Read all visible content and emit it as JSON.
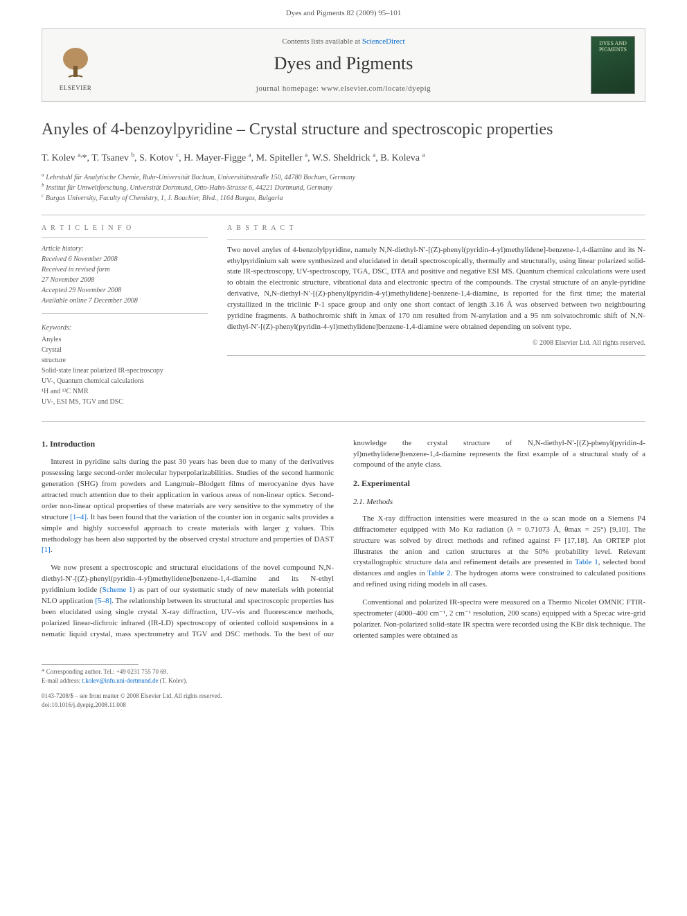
{
  "running_head": "Dyes and Pigments 82 (2009) 95–101",
  "banner": {
    "contents_prefix": "Contents lists available at ",
    "contents_link": "ScienceDirect",
    "journal_name": "Dyes and Pigments",
    "homepage_prefix": "journal homepage: ",
    "homepage_url": "www.elsevier.com/locate/dyepig",
    "publisher_logo_text": "ELSEVIER",
    "cover_text": "DYES AND PIGMENTS"
  },
  "title": "Anyles of 4-benzoylpyridine – Crystal structure and spectroscopic properties",
  "authors_html": "T. Kolev <sup>a,</sup>*, T. Tsanev <sup>b</sup>, S. Kotov <sup>c</sup>, H. Mayer-Figge <sup>a</sup>, M. Spiteller <sup>a</sup>, W.S. Sheldrick <sup>a</sup>, B. Koleva <sup>a</sup>",
  "affiliations": [
    "a Lehrstuhl für Analytische Chemie, Ruhr-Universität Bochum, Universitätsstraße 150, 44780 Bochum, Germany",
    "b Institut für Umweltforschung, Universität Dortmund, Otto-Hahn-Strasse 6, 44221 Dortmund, Germany",
    "c Burgas University, Faculty of Chemistry, 1, J. Bouchier, Blvd., 1164 Burgas, Bulgaria"
  ],
  "article_info_label": "A R T I C L E   I N F O",
  "abstract_label": "A B S T R A C T",
  "history": {
    "head": "Article history:",
    "received": "Received 6 November 2008",
    "revised": "Received in revised form",
    "revised_date": "27 November 2008",
    "accepted": "Accepted 29 November 2008",
    "online": "Available online 7 December 2008"
  },
  "keywords_head": "Keywords:",
  "keywords": [
    "Anyles",
    "Crystal",
    "structure",
    "Solid-state linear polarized IR-spectroscopy",
    "UV-, Quantum chemical calculations",
    "¹H and ¹³C NMR",
    "UV-, ESI MS, TGV and DSC"
  ],
  "abstract": "Two novel anyles of 4-benzolylpyridine, namely N,N-diethyl-N′-[(Z)-phenyl(pyridin-4-yl)methylidene]-benzene-1,4-diamine and its N-ethylpyridinium salt were synthesized and elucidated in detail spectroscopically, thermally and structurally, using linear polarized solid-state IR-spectroscopy, UV-spectroscopy, TGA, DSC, DTA and positive and negative ESI MS. Quantum chemical calculations were used to obtain the electronic structure, vibrational data and electronic spectra of the compounds. The crystal structure of an anyle-pyridine derivative, N,N-diethyl-N′-[(Z)-phenyl(pyridin-4-yl)methylidene]-benzene-1,4-diamine, is reported for the first time; the material crystallized in the triclinic P-1 space group and only one short contact of length 3.16 Å was observed between two neighbouring pyridine fragments. A bathochromic shift in λmax of 170 nm resulted from N-anylation and a 95 nm solvatochromic shift of N,N-diethyl-N′-[(Z)-phenyl(pyridin-4-yl)methylidene]benzene-1,4-diamine were obtained depending on solvent type.",
  "copyright": "© 2008 Elsevier Ltd. All rights reserved.",
  "sections": {
    "intro_head": "1. Introduction",
    "intro_p1": "Interest in pyridine salts during the past 30 years has been due to many of the derivatives possessing large second-order molecular hyperpolarizabilities. Studies of the second harmonic generation (SHG) from powders and Langmuir–Blodgett films of merocyanine dyes have attracted much attention due to their application in various areas of non-linear optics. Second-order non-linear optical properties of these materials are very sensitive to the symmetry of the structure [1–4]. It has been found that the variation of the counter ion in organic salts provides a simple and highly successful approach to create materials with larger χ values. This methodology has been also supported by the observed crystal structure and properties of DAST [1].",
    "intro_p2": "We now present a spectroscopic and structural elucidations of the novel compound N,N-diethyl-N′-[(Z)-phenyl(pyridin-4-yl)methylidene]benzene-1,4-diamine and its N-ethyl pyridinium iodide (Scheme 1) as part of our systematic study of new materials with potential NLO application [5–8]. The relationship between its structural and spectroscopic properties has been elucidated using single crystal X-ray diffraction, UV–vis and fluorescence methods, polarized linear-dichroic infrared (IR-LD) spectroscopy of oriented colloid suspensions in a nematic liquid crystal, mass spectrometry and TGV and DSC methods. To the best of our knowledge the crystal structure of N,N-diethyl-N′-[(Z)-phenyl(pyridin-4-yl)methylidene]benzene-1,4-diamine represents the first example of a structural study of a compound of the anyle class.",
    "exp_head": "2. Experimental",
    "methods_head": "2.1. Methods",
    "methods_p1": "The X-ray diffraction intensities were measured in the ω scan mode on a Siemens P4 diffractometer equipped with Mo Kα radiation (λ = 0.71073 Å, θmax = 25°) [9,10]. The structure was solved by direct methods and refined against F² [17,18]. An ORTEP plot illustrates the anion and cation structures at the 50% probability level. Relevant crystallographic structure data and refinement details are presented in Table 1, selected bond distances and angles in Table 2. The hydrogen atoms were constrained to calculated positions and refined using riding models in all cases.",
    "methods_p2": "Conventional and polarized IR-spectra were measured on a Thermo Nicolet OMNIC FTIR-spectrometer (4000–400 cm⁻¹, 2 cm⁻¹ resolution, 200 scans) equipped with a Specac wire-grid polarizer. Non-polarized solid-state IR spectra were recorded using the KBr disk technique. The oriented samples were obtained as"
  },
  "corresponding": {
    "label": "* Corresponding author. Tel.: +49 0231 755 70 69.",
    "email_label": "E-mail address: ",
    "email": "t.kolev@infu.uni-dortmund.de",
    "email_suffix": " (T. Kolev)."
  },
  "pub_footer": {
    "line1": "0143-7208/$ – see front matter © 2008 Elsevier Ltd. All rights reserved.",
    "line2": "doi:10.1016/j.dyepig.2008.11.008"
  },
  "colors": {
    "link": "#0066cc",
    "text": "#3a3a3a",
    "muted": "#555555",
    "rule": "#bbbbbb",
    "banner_bg": "#f7f7f5",
    "cover_bg_from": "#2a5a3a",
    "cover_bg_to": "#1a3a25"
  }
}
